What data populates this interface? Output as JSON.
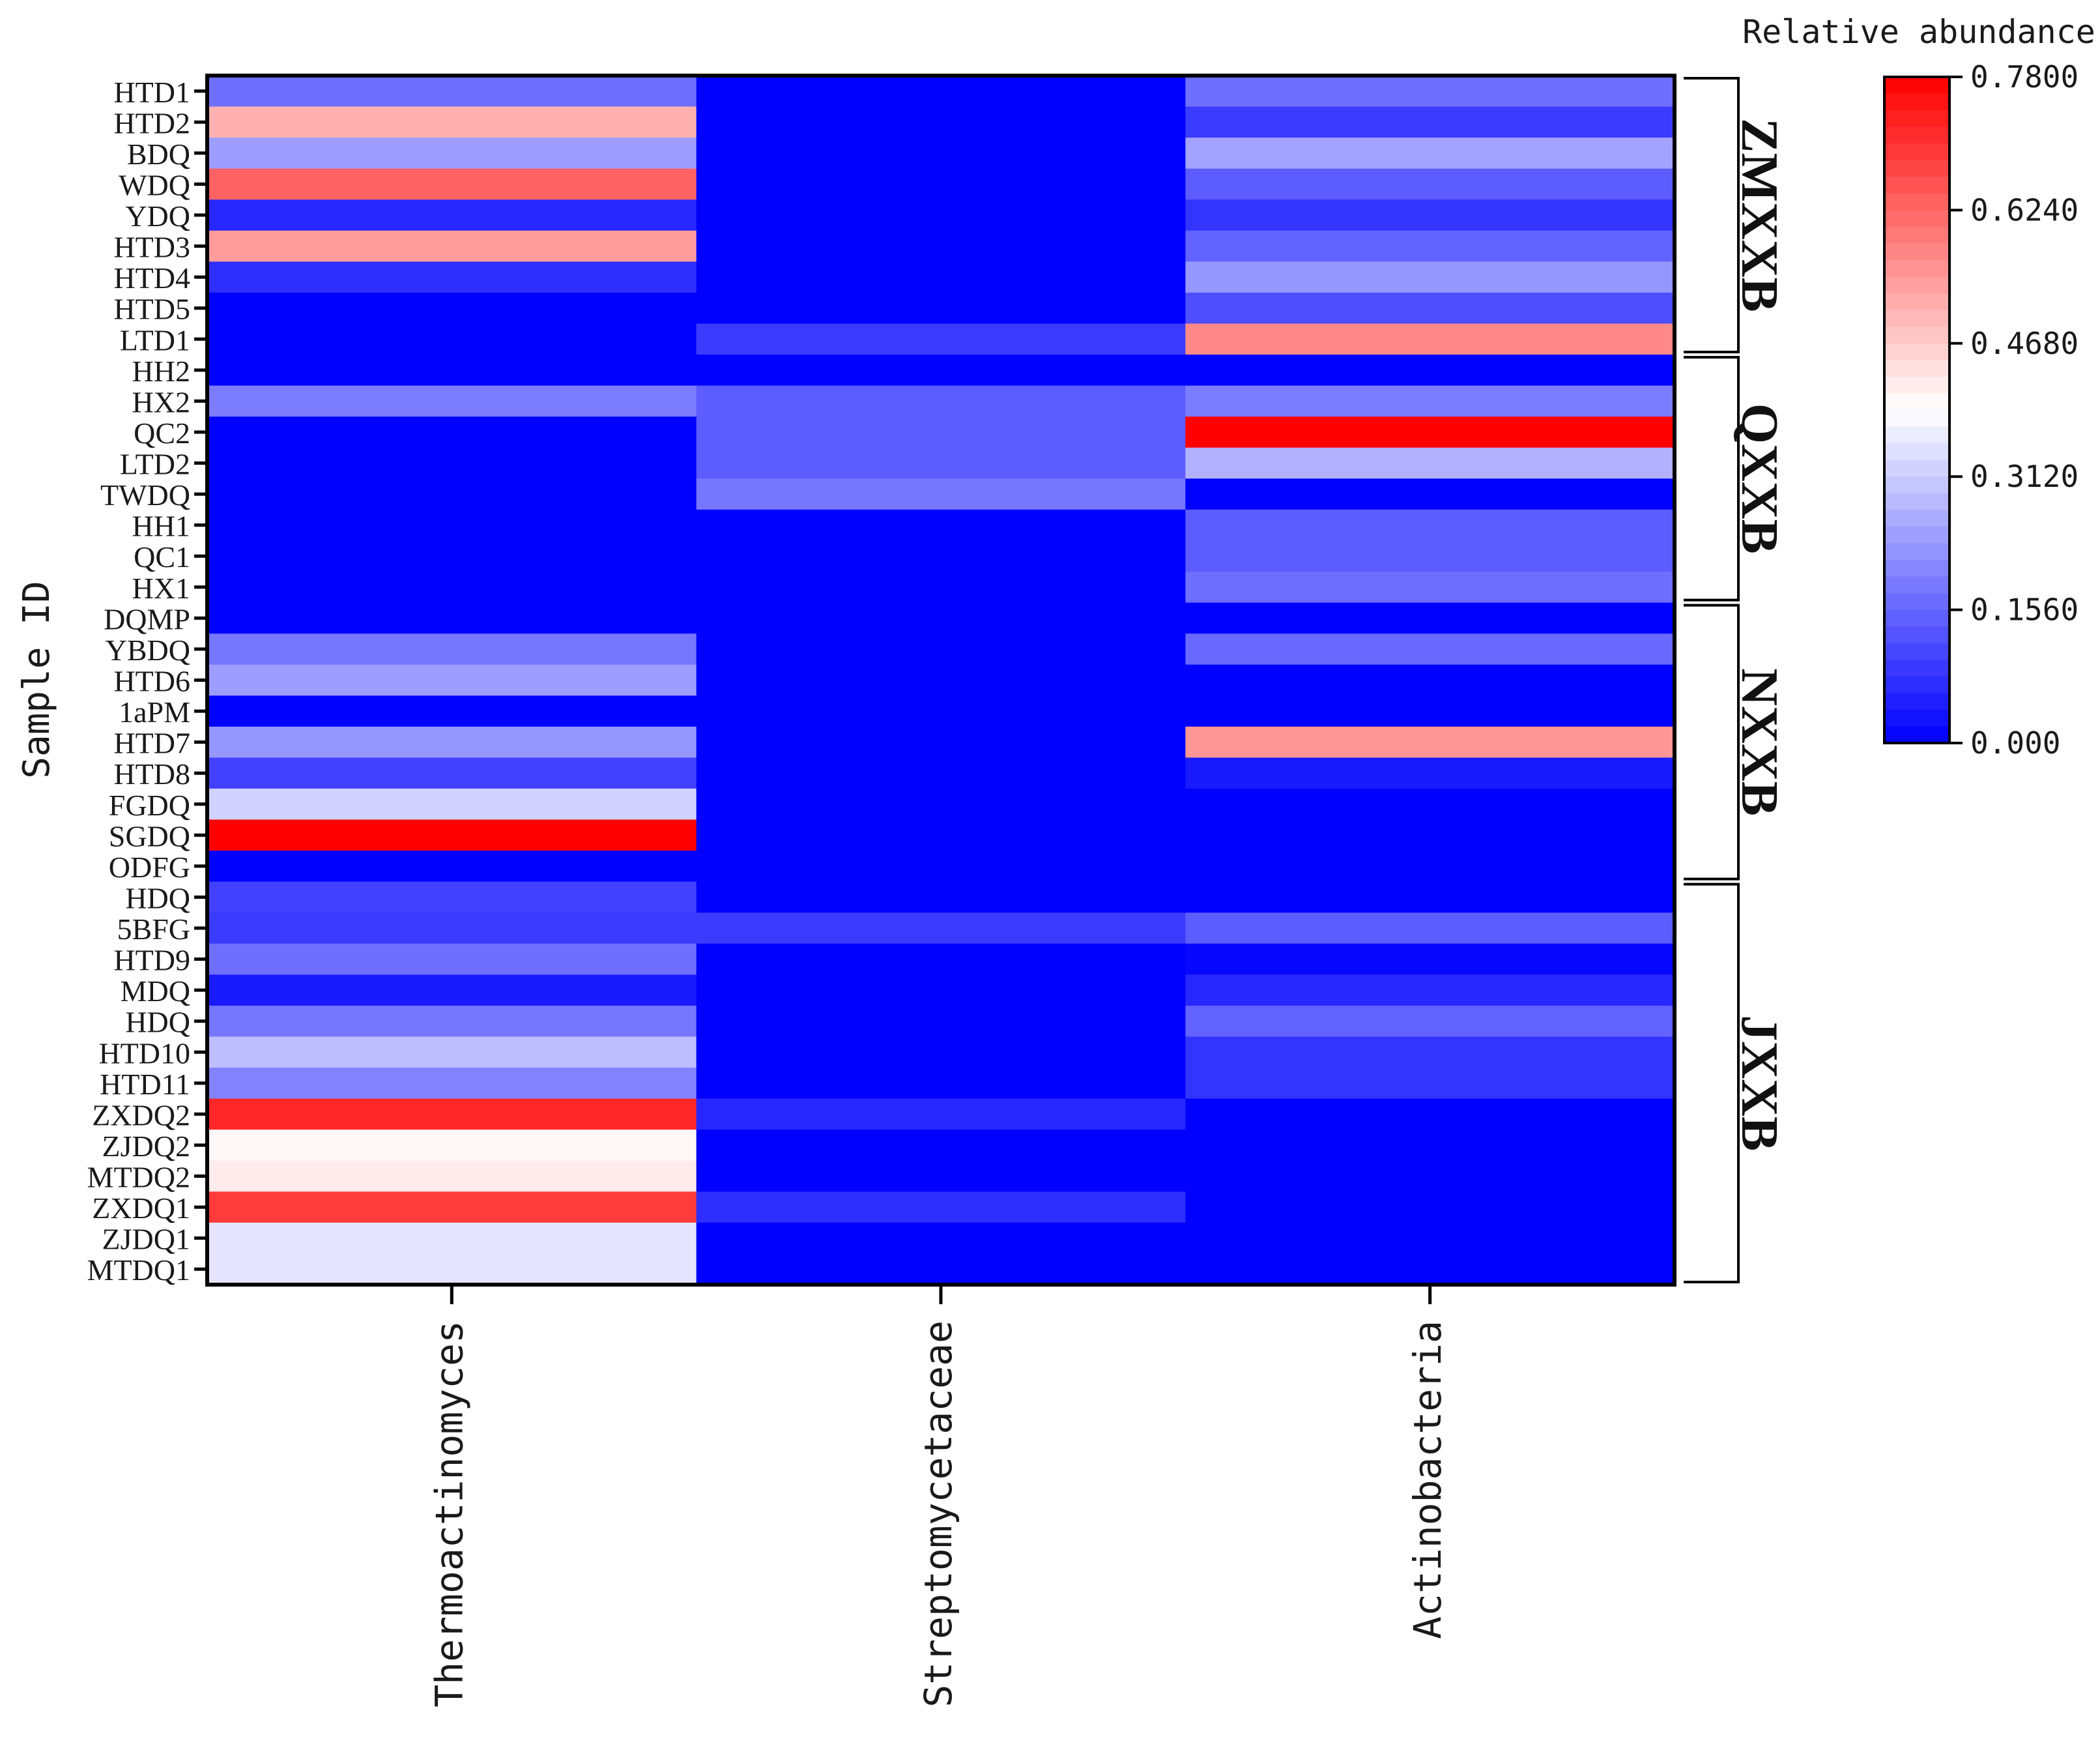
{
  "chart_data": {
    "type": "heatmap",
    "title": "",
    "ylabel": "Sample ID",
    "colorbar_title": "Relative abundance",
    "colorbar_ticks": [
      "0.7800",
      "0.6240",
      "0.4680",
      "0.3120",
      "0.1560",
      "0.000"
    ],
    "colorbar_range": [
      0,
      0.78
    ],
    "colors": {
      "low": "#0000ff",
      "mid": "#ffffff",
      "high": "#ff0000"
    },
    "columns": [
      "Thermoactinomyces",
      "Streptomycetaceae",
      "Actinobacteria"
    ],
    "rows": [
      "HTD1",
      "HTD2",
      "BDQ",
      "WDQ",
      "YDQ",
      "HTD3",
      "HTD4",
      "HTD5",
      "LTD1",
      "HH2",
      "HX2",
      "QC2",
      "LTD2",
      "TWDQ",
      "HH1",
      "QC1",
      "HX1",
      "DQMP",
      "YBDQ",
      "HTD6",
      "1aPM",
      "HTD7",
      "HTD8",
      "FGDQ",
      "SGDQ",
      "ODFG",
      "HDQ",
      "5BFG",
      "HTD9",
      "MDQ",
      "HDQ",
      "HTD10",
      "HTD11",
      "ZXDQ2",
      "ZJDQ2",
      "MTDQ2",
      "ZXDQ1",
      "ZJDQ1",
      "MTDQ1"
    ],
    "values": [
      [
        0.17,
        0.0,
        0.17
      ],
      [
        0.51,
        0.0,
        0.09
      ],
      [
        0.24,
        0.0,
        0.25
      ],
      [
        0.63,
        0.0,
        0.14
      ],
      [
        0.06,
        0.0,
        0.08
      ],
      [
        0.54,
        0.0,
        0.15
      ],
      [
        0.07,
        0.0,
        0.23
      ],
      [
        0.0,
        0.0,
        0.12
      ],
      [
        0.0,
        0.09,
        0.57
      ],
      [
        0.0,
        0.0,
        0.0
      ],
      [
        0.19,
        0.14,
        0.19
      ],
      [
        0.0,
        0.14,
        0.78
      ],
      [
        0.0,
        0.14,
        0.27
      ],
      [
        0.0,
        0.18,
        0.0
      ],
      [
        0.0,
        0.0,
        0.14
      ],
      [
        0.0,
        0.0,
        0.14
      ],
      [
        0.0,
        0.0,
        0.17
      ],
      [
        0.0,
        0.0,
        0.0
      ],
      [
        0.18,
        0.0,
        0.16
      ],
      [
        0.24,
        0.0,
        0.0
      ],
      [
        0.0,
        0.0,
        0.0
      ],
      [
        0.23,
        0.0,
        0.55
      ],
      [
        0.1,
        0.0,
        0.04
      ],
      [
        0.32,
        0.0,
        0.0
      ],
      [
        0.78,
        0.0,
        0.0
      ],
      [
        0.0,
        0.0,
        0.0
      ],
      [
        0.1,
        0.0,
        0.0
      ],
      [
        0.09,
        0.09,
        0.14
      ],
      [
        0.17,
        0.0,
        0.01
      ],
      [
        0.04,
        0.0,
        0.06
      ],
      [
        0.18,
        0.0,
        0.15
      ],
      [
        0.29,
        0.0,
        0.08
      ],
      [
        0.2,
        0.0,
        0.08
      ],
      [
        0.72,
        0.06,
        0.0
      ],
      [
        0.4,
        0.0,
        0.0
      ],
      [
        0.42,
        0.0,
        0.0
      ],
      [
        0.69,
        0.07,
        0.0
      ],
      [
        0.35,
        0.0,
        0.0
      ],
      [
        0.35,
        0.0,
        0.0
      ]
    ],
    "groups": [
      {
        "label": "ZMXXB",
        "start": 0,
        "end": 8
      },
      {
        "label": "QXXB",
        "start": 9,
        "end": 16
      },
      {
        "label": "NXXB",
        "start": 17,
        "end": 25
      },
      {
        "label": "JXXB",
        "start": 26,
        "end": 38
      }
    ]
  }
}
